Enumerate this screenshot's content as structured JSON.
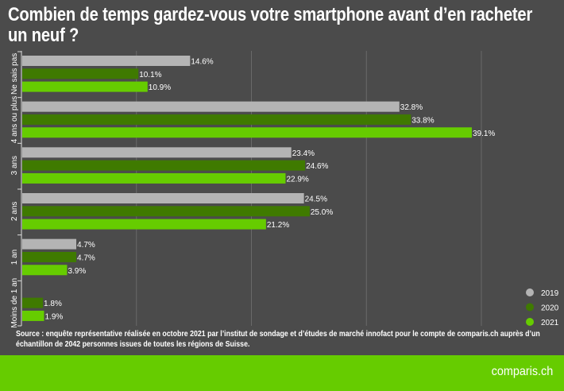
{
  "chart_data": {
    "type": "bar",
    "orientation": "horizontal",
    "title": "Combien de temps gardez-vous votre smartphone avant d’en racheter un neuf ?",
    "categories": [
      "Ne sais pas",
      "4 ans ou plus",
      "3 ans",
      "2 ans",
      "1 an",
      "Moins de 1 an"
    ],
    "series": [
      {
        "name": "2019",
        "color": "#b4b4b4",
        "values": [
          14.6,
          32.8,
          23.4,
          24.5,
          4.7,
          null
        ],
        "labels": [
          "14.6%",
          "32.8%",
          "23.4%",
          "24.5%",
          "4.7%",
          null
        ]
      },
      {
        "name": "2020",
        "color": "#3f7a00",
        "values": [
          10.1,
          33.8,
          24.6,
          25.0,
          4.7,
          1.8
        ],
        "labels": [
          "10.1%",
          "33.8%",
          "24.6%",
          "25.0%",
          "4.7%",
          "1.8%"
        ]
      },
      {
        "name": "2021",
        "color": "#66cc00",
        "values": [
          10.9,
          39.1,
          22.9,
          21.2,
          3.9,
          1.9
        ],
        "labels": [
          "10.9%",
          "39.1%",
          "22.9%",
          "21.2%",
          "3.9%",
          "1.9%"
        ]
      }
    ],
    "unit": "%",
    "xlim": [
      0,
      40
    ],
    "grid": true,
    "gridlines": [
      10,
      20,
      30,
      40
    ],
    "legend_position": "bottom-right"
  },
  "source": "Source : enquête représentative réalisée en octobre 2021 par l’institut de sondage et d’études de marché innofact pour le compte de comparis.ch auprès d’un échantillon de 2042 personnes issues de toutes les régions de Suisse.",
  "brand": "comparis.ch",
  "colors": {
    "background": "#4b4b4b",
    "footer": "#66cc00",
    "grid": "#6a6a6a"
  }
}
